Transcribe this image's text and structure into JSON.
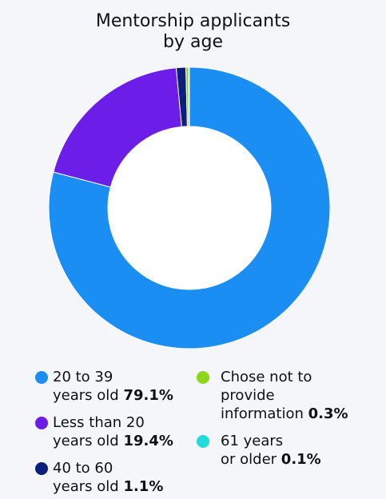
{
  "colors": {
    "background": "#f4f6f9",
    "s1": "#1a8ef2",
    "s2": "#6c1ee8",
    "s3": "#0c1f7a",
    "s4": "#8fd61a",
    "s5": "#22dcdc"
  },
  "chart_data": {
    "type": "pie",
    "variant": "donut",
    "title_lines": [
      "Mentorship applicants",
      "by age"
    ],
    "slices": [
      {
        "line1": "20 to 39",
        "line2": "years old",
        "value": 79.1,
        "value_label": "79.1%",
        "color": "#1a8ef2",
        "icon": "circle-icon"
      },
      {
        "line1": "Less than 20",
        "line2": "years old",
        "value": 19.4,
        "value_label": "19.4%",
        "color": "#6c1ee8",
        "icon": "circle-icon"
      },
      {
        "line1": "40 to 60",
        "line2": "years old",
        "value": 1.1,
        "value_label": "1.1%",
        "color": "#0c1f7a",
        "icon": "circle-icon"
      },
      {
        "line1": "Chose not to",
        "line2": "provide",
        "line3": "information",
        "value": 0.3,
        "value_label": "0.3%",
        "color": "#8fd61a",
        "icon": "circle-icon"
      },
      {
        "line1": "61 years",
        "line2": "or older",
        "value": 0.1,
        "value_label": "0.1%",
        "color": "#22dcdc",
        "icon": "circle-icon"
      }
    ],
    "legend_position": "bottom"
  }
}
